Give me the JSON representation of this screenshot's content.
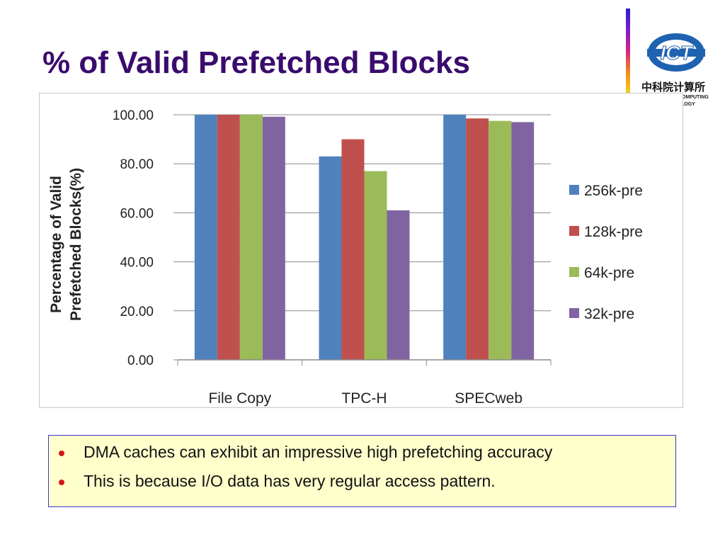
{
  "slide": {
    "title": "% of Valid Prefetched Blocks",
    "logo": {
      "name": "ict-logo-icon",
      "text": "ICT",
      "chinese_text": "中科院计算所",
      "subtitle_line1": "COMPUTING",
      "subtitle_line2": "LOGY",
      "colors": {
        "ring": "#1e62b0",
        "text": "#ffffff"
      }
    },
    "bullets": [
      "DMA caches can exhibit an impressive high prefetching accuracy",
      "This is because I/O data has very regular access pattern."
    ],
    "colors": {
      "title": "#3a0b6e",
      "bullet_box_bg": "#ffffcc",
      "bullet_box_border": "#3a3ad0",
      "bullet_dot": "#d41616"
    }
  },
  "chart_data": {
    "type": "bar",
    "categories": [
      "File Copy",
      "TPC-H",
      "SPECweb"
    ],
    "series": [
      {
        "name": "256k-pre",
        "color": "#4f81bd",
        "values": [
          100,
          83,
          100
        ]
      },
      {
        "name": "128k-pre",
        "color": "#c0504d",
        "values": [
          100,
          90,
          98.5
        ]
      },
      {
        "name": "64k-pre",
        "color": "#9bbb59",
        "values": [
          100,
          77,
          97.5
        ]
      },
      {
        "name": "32k-pre",
        "color": "#8064a2",
        "values": [
          99.2,
          61,
          97
        ]
      }
    ],
    "ylabel_line1": "Percentage of Valid",
    "ylabel_line2": "Prefetched Blocks(%)",
    "ylim": [
      0,
      100
    ],
    "yticks": [
      0,
      20,
      40,
      60,
      80,
      100
    ],
    "ytick_labels": [
      "0.00",
      "20.00",
      "40.00",
      "60.00",
      "80.00",
      "100.00"
    ],
    "grid": true,
    "legend": "right"
  }
}
